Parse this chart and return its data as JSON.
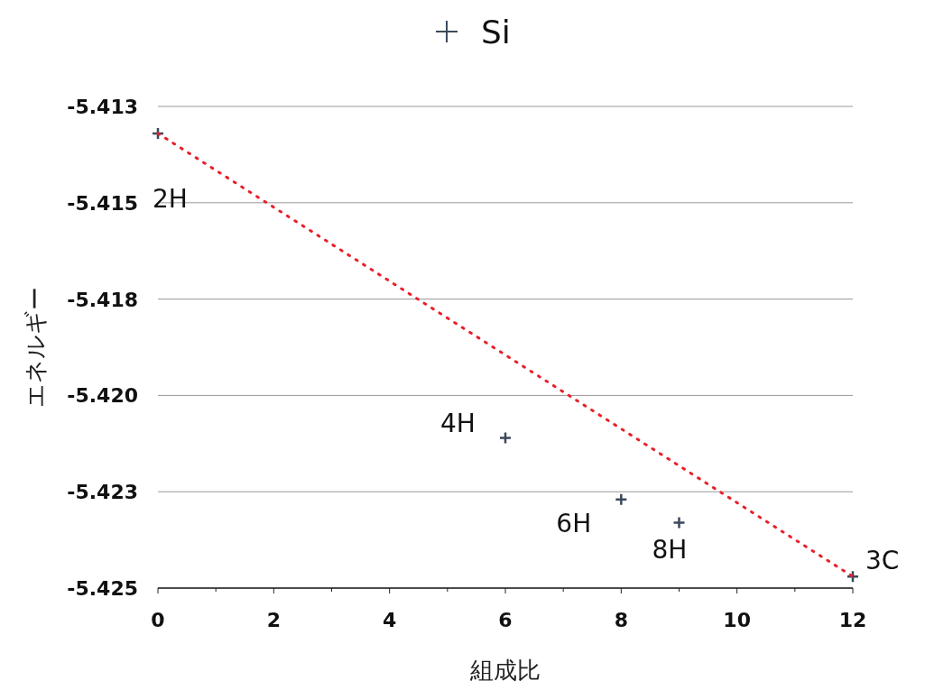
{
  "chart_data": {
    "type": "scatter",
    "xlabel": "組成比",
    "ylabel": "エネルギー",
    "series": [
      {
        "name": "Si",
        "color": "#3a4a5a",
        "marker": "cross",
        "x": [
          0,
          6,
          8,
          9,
          12
        ],
        "values": [
          -5.4132,
          -5.4211,
          -5.4227,
          -5.4233,
          -5.4247
        ]
      },
      {
        "type": "line",
        "color": "#e8202a",
        "line_style": "dotted",
        "marker": "none",
        "x": [
          0,
          12
        ],
        "values": [
          -5.4132,
          -5.4247
        ]
      }
    ],
    "xlim": [
      0,
      12
    ],
    "xticks": [
      0,
      {
        "value": 1,
        "label": null
      },
      2,
      {
        "value": 3,
        "label": null
      },
      4,
      {
        "value": 5,
        "label": null
      },
      6,
      {
        "value": 7,
        "label": null
      },
      8,
      {
        "value": 9,
        "label": null
      },
      10,
      {
        "value": 11,
        "label": null
      },
      12
    ],
    "ylim": [
      -5.425,
      -5.4125
    ],
    "yticks": [
      {
        "value": -5.4125,
        "label": "-5.413"
      },
      {
        "value": -5.415,
        "label": "-5.415"
      },
      {
        "value": -5.4175,
        "label": "-5.418"
      },
      {
        "value": -5.42,
        "label": "-5.420"
      },
      {
        "value": -5.4225,
        "label": "-5.423"
      },
      {
        "value": -5.425,
        "label": "-5.425"
      }
    ],
    "grid": "y",
    "legend": "top",
    "annotations": [
      {
        "text": "2H",
        "x": 0,
        "y": -5.4132
      },
      {
        "text": "4H",
        "x": 6,
        "y": -5.4211
      },
      {
        "text": "6H",
        "x": 8,
        "y": -5.4227
      },
      {
        "text": "8H",
        "x": 9,
        "y": -5.4233
      },
      {
        "text": "3C",
        "x": 12,
        "y": -5.4247
      }
    ]
  }
}
